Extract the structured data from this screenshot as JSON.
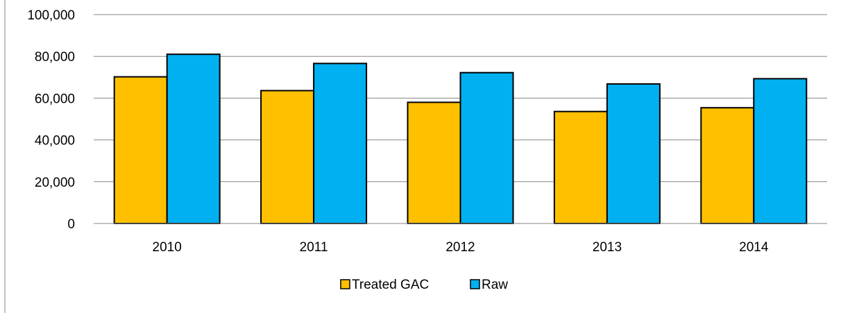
{
  "chart_data": {
    "type": "bar",
    "categories": [
      "2010",
      "2011",
      "2012",
      "2013",
      "2014"
    ],
    "series": [
      {
        "name": "Treated GAC",
        "color": "#FFC000",
        "values": [
          70200,
          63600,
          58000,
          53600,
          55400
        ]
      },
      {
        "name": "Raw",
        "color": "#00B0F0",
        "values": [
          81000,
          76600,
          72200,
          66800,
          69300
        ]
      }
    ],
    "yticks": [
      0,
      20000,
      40000,
      60000,
      80000,
      100000
    ],
    "ytick_labels": [
      "0",
      "20,000",
      "40,000",
      "60,000",
      "80,000",
      "100,000"
    ],
    "ylim": [
      0,
      100000
    ],
    "grid": true,
    "legend_position": "bottom"
  }
}
